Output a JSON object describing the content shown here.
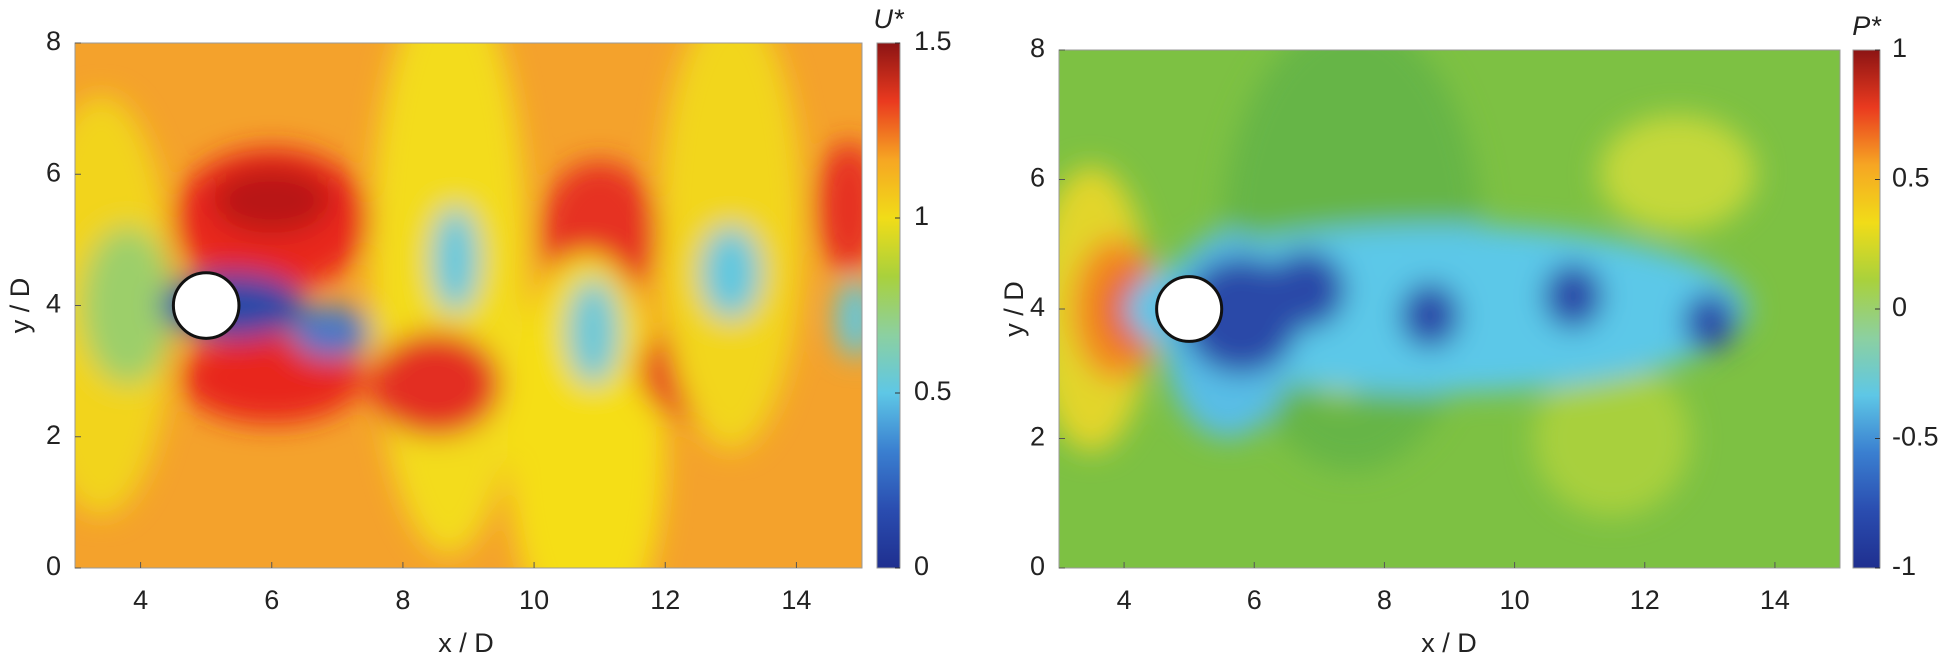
{
  "chart_data": [
    {
      "type": "contour",
      "xlabel": "x / D",
      "ylabel": "y / D",
      "xlim": [
        3,
        15
      ],
      "ylim": [
        0,
        8
      ],
      "xticks": [
        4,
        6,
        8,
        10,
        12,
        14
      ],
      "yticks": [
        0,
        2,
        4,
        6,
        8
      ],
      "colormap": "jet",
      "colorbar": {
        "label": "U*",
        "lim": [
          0,
          1.5
        ],
        "ticks": [
          0,
          0.5,
          1,
          1.5
        ]
      },
      "cylinder": {
        "x": 5,
        "y": 4,
        "diameter": 1
      },
      "grid": false
    },
    {
      "type": "contour",
      "xlabel": "x / D",
      "ylabel": "y / D",
      "xlim": [
        3,
        15
      ],
      "ylim": [
        0,
        8
      ],
      "xticks": [
        4,
        6,
        8,
        10,
        12,
        14
      ],
      "yticks": [
        0,
        2,
        4,
        6,
        8
      ],
      "colormap": "jet",
      "colorbar": {
        "label": "P*",
        "lim": [
          -1,
          1
        ],
        "ticks": [
          -1,
          -0.5,
          0,
          0.5,
          1
        ]
      },
      "cylinder": {
        "x": 5,
        "y": 4,
        "diameter": 1
      },
      "grid": false
    }
  ]
}
